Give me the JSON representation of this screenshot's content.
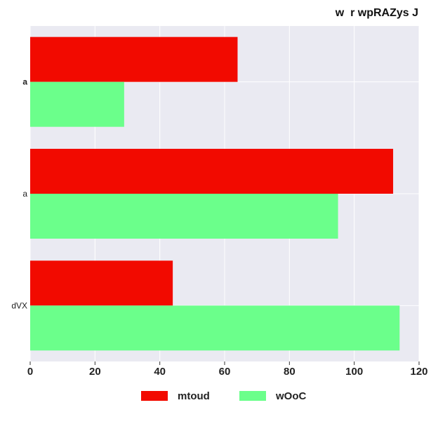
{
  "chart_data": {
    "type": "bar",
    "orientation": "horizontal",
    "title": "w  r wpRAZys J",
    "xlabel": "",
    "ylabel": "",
    "categories": [
      "a",
      "a",
      "dVX"
    ],
    "category_bold": [
      true,
      false,
      false
    ],
    "series": [
      {
        "name": "mtoud",
        "values": [
          64,
          112,
          44
        ],
        "color": "#f20a00"
      },
      {
        "name": "wOoC",
        "values": [
          29,
          95,
          114
        ],
        "color": "#6bff8b"
      }
    ],
    "xlim": [
      0,
      120
    ],
    "xticks": [
      0,
      20,
      40,
      60,
      80,
      100,
      120
    ],
    "grid": true,
    "legend_position": "bottom",
    "plot_background": "#eaeaf2"
  }
}
